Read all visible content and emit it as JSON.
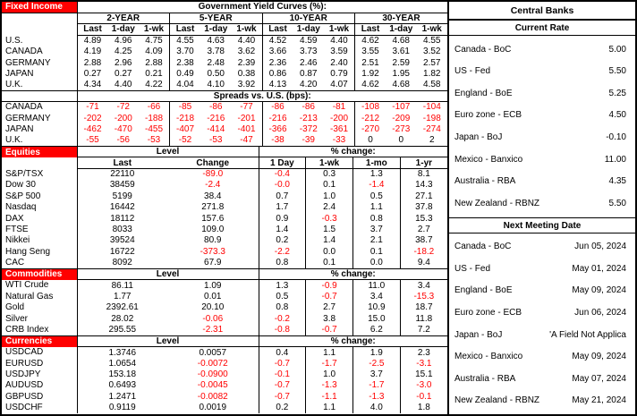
{
  "left": {
    "fixed_income": {
      "section_label": "Fixed Income",
      "title": "Government Yield Curves (%):",
      "groups": [
        "2-YEAR",
        "5-YEAR",
        "10-YEAR",
        "30-YEAR"
      ],
      "subheaders": [
        "Last",
        "1-day",
        "1-wk"
      ],
      "yield_rows": [
        {
          "label": "U.S.",
          "values": [
            "4.89",
            "4.96",
            "4.75",
            "4.55",
            "4.63",
            "4.40",
            "4.52",
            "4.59",
            "4.40",
            "4.62",
            "4.68",
            "4.55"
          ]
        },
        {
          "label": "CANADA",
          "values": [
            "4.19",
            "4.25",
            "4.09",
            "3.70",
            "3.78",
            "3.62",
            "3.66",
            "3.73",
            "3.59",
            "3.55",
            "3.61",
            "3.52"
          ]
        },
        {
          "label": "GERMANY",
          "values": [
            "2.88",
            "2.96",
            "2.88",
            "2.38",
            "2.48",
            "2.39",
            "2.36",
            "2.46",
            "2.40",
            "2.51",
            "2.59",
            "2.57"
          ]
        },
        {
          "label": "JAPAN",
          "values": [
            "0.27",
            "0.27",
            "0.21",
            "0.49",
            "0.50",
            "0.38",
            "0.86",
            "0.87",
            "0.79",
            "1.92",
            "1.95",
            "1.82"
          ]
        },
        {
          "label": "U.K.",
          "values": [
            "4.34",
            "4.40",
            "4.22",
            "4.04",
            "4.10",
            "3.92",
            "4.13",
            "4.20",
            "4.07",
            "4.62",
            "4.68",
            "4.58"
          ]
        }
      ],
      "spreads_title": "Spreads vs. U.S. (bps):",
      "spread_rows": [
        {
          "label": "CANADA",
          "values": [
            "-71",
            "-72",
            "-66",
            "-85",
            "-86",
            "-77",
            "-86",
            "-86",
            "-81",
            "-108",
            "-107",
            "-104"
          ]
        },
        {
          "label": "GERMANY",
          "values": [
            "-202",
            "-200",
            "-188",
            "-218",
            "-216",
            "-201",
            "-216",
            "-213",
            "-200",
            "-212",
            "-209",
            "-198"
          ]
        },
        {
          "label": "JAPAN",
          "values": [
            "-462",
            "-470",
            "-455",
            "-407",
            "-414",
            "-401",
            "-366",
            "-372",
            "-361",
            "-270",
            "-273",
            "-274"
          ]
        },
        {
          "label": "U.K.",
          "values": [
            "-55",
            "-56",
            "-53",
            "-52",
            "-53",
            "-47",
            "-38",
            "-39",
            "-33",
            "0",
            "0",
            "2"
          ]
        }
      ]
    },
    "equities": {
      "section_label": "Equities",
      "level_header": "Level",
      "pct_header": "% change:",
      "columns": [
        "Last",
        "Change",
        "1 Day",
        "1-wk",
        "1-mo",
        "1-yr"
      ],
      "rows": [
        {
          "label": "S&P/TSX",
          "values": [
            "22110",
            "-89.0",
            "-0.4",
            "0.3",
            "1.3",
            "8.1"
          ]
        },
        {
          "label": "Dow 30",
          "values": [
            "38459",
            "-2.4",
            "-0.0",
            "0.1",
            "-1.4",
            "14.3"
          ]
        },
        {
          "label": "S&P 500",
          "values": [
            "5199",
            "38.4",
            "0.7",
            "1.0",
            "0.5",
            "27.1"
          ]
        },
        {
          "label": "Nasdaq",
          "values": [
            "16442",
            "271.8",
            "1.7",
            "2.4",
            "1.1",
            "37.8"
          ]
        },
        {
          "label": "DAX",
          "values": [
            "18112",
            "157.6",
            "0.9",
            "-0.3",
            "0.8",
            "15.3"
          ]
        },
        {
          "label": "FTSE",
          "values": [
            "8033",
            "109.0",
            "1.4",
            "1.5",
            "3.7",
            "2.7"
          ]
        },
        {
          "label": "Nikkei",
          "values": [
            "39524",
            "80.9",
            "0.2",
            "1.4",
            "2.1",
            "38.7"
          ]
        },
        {
          "label": "Hang Seng",
          "values": [
            "16722",
            "-373.3",
            "-2.2",
            "0.0",
            "0.1",
            "-18.2"
          ]
        },
        {
          "label": "CAC",
          "values": [
            "8092",
            "67.9",
            "0.8",
            "0.1",
            "0.0",
            "9.4"
          ]
        }
      ]
    },
    "commodities": {
      "section_label": "Commodities",
      "level_header": "Level",
      "pct_header": "% change:",
      "rows": [
        {
          "label": "WTI Crude",
          "values": [
            "86.11",
            "1.09",
            "1.3",
            "-0.9",
            "11.0",
            "3.4"
          ]
        },
        {
          "label": "Natural Gas",
          "values": [
            "1.77",
            "0.01",
            "0.5",
            "-0.7",
            "3.4",
            "-15.3"
          ]
        },
        {
          "label": "Gold",
          "values": [
            "2392.61",
            "20.10",
            "0.8",
            "2.7",
            "10.9",
            "18.7"
          ]
        },
        {
          "label": "Silver",
          "values": [
            "28.02",
            "-0.06",
            "-0.2",
            "3.8",
            "15.0",
            "11.8"
          ]
        },
        {
          "label": "CRB Index",
          "values": [
            "295.55",
            "-2.31",
            "-0.8",
            "-0.7",
            "6.2",
            "7.2"
          ]
        }
      ]
    },
    "currencies": {
      "section_label": "Currencies",
      "level_header": "Level",
      "pct_header": "% change:",
      "rows": [
        {
          "label": "USDCAD",
          "values": [
            "1.3746",
            "0.0057",
            "0.4",
            "1.1",
            "1.9",
            "2.3"
          ]
        },
        {
          "label": "EURUSD",
          "values": [
            "1.0654",
            "-0.0072",
            "-0.7",
            "-1.7",
            "-2.5",
            "-3.1"
          ]
        },
        {
          "label": "USDJPY",
          "values": [
            "153.18",
            "-0.0900",
            "-0.1",
            "1.0",
            "3.7",
            "15.1"
          ]
        },
        {
          "label": "AUDUSD",
          "values": [
            "0.6493",
            "-0.0045",
            "-0.7",
            "-1.3",
            "-1.7",
            "-3.0"
          ]
        },
        {
          "label": "GBPUSD",
          "values": [
            "1.2471",
            "-0.0082",
            "-0.7",
            "-1.1",
            "-1.3",
            "-0.1"
          ]
        },
        {
          "label": "USDCHF",
          "values": [
            "0.9119",
            "0.0019",
            "0.2",
            "1.1",
            "4.0",
            "1.8"
          ]
        }
      ]
    }
  },
  "right": {
    "title": "Central Banks",
    "current_rate_header": "Current Rate",
    "rates": [
      {
        "label": "Canada - BoC",
        "value": "5.00"
      },
      {
        "label": "US - Fed",
        "value": "5.50"
      },
      {
        "label": "England - BoE",
        "value": "5.25"
      },
      {
        "label": "Euro zone - ECB",
        "value": "4.50"
      },
      {
        "label": "Japan - BoJ",
        "value": "-0.10"
      },
      {
        "label": "Mexico - Banxico",
        "value": "11.00"
      },
      {
        "label": "Australia - RBA",
        "value": "4.35"
      },
      {
        "label": "New Zealand - RBNZ",
        "value": "5.50"
      }
    ],
    "meeting_header": "Next Meeting Date",
    "meetings": [
      {
        "label": "Canada - BoC",
        "value": "Jun 05, 2024"
      },
      {
        "label": "US - Fed",
        "value": "May 01, 2024"
      },
      {
        "label": "England - BoE",
        "value": "May 09, 2024"
      },
      {
        "label": "Euro zone - ECB",
        "value": "Jun 06, 2024"
      },
      {
        "label": "Japan - BoJ",
        "value": "'A Field Not Applica"
      },
      {
        "label": "Mexico - Banxico",
        "value": "May 09, 2024"
      },
      {
        "label": "Australia - RBA",
        "value": "May 07, 2024"
      },
      {
        "label": "New Zealand - RBNZ",
        "value": "May 21, 2024"
      }
    ]
  }
}
